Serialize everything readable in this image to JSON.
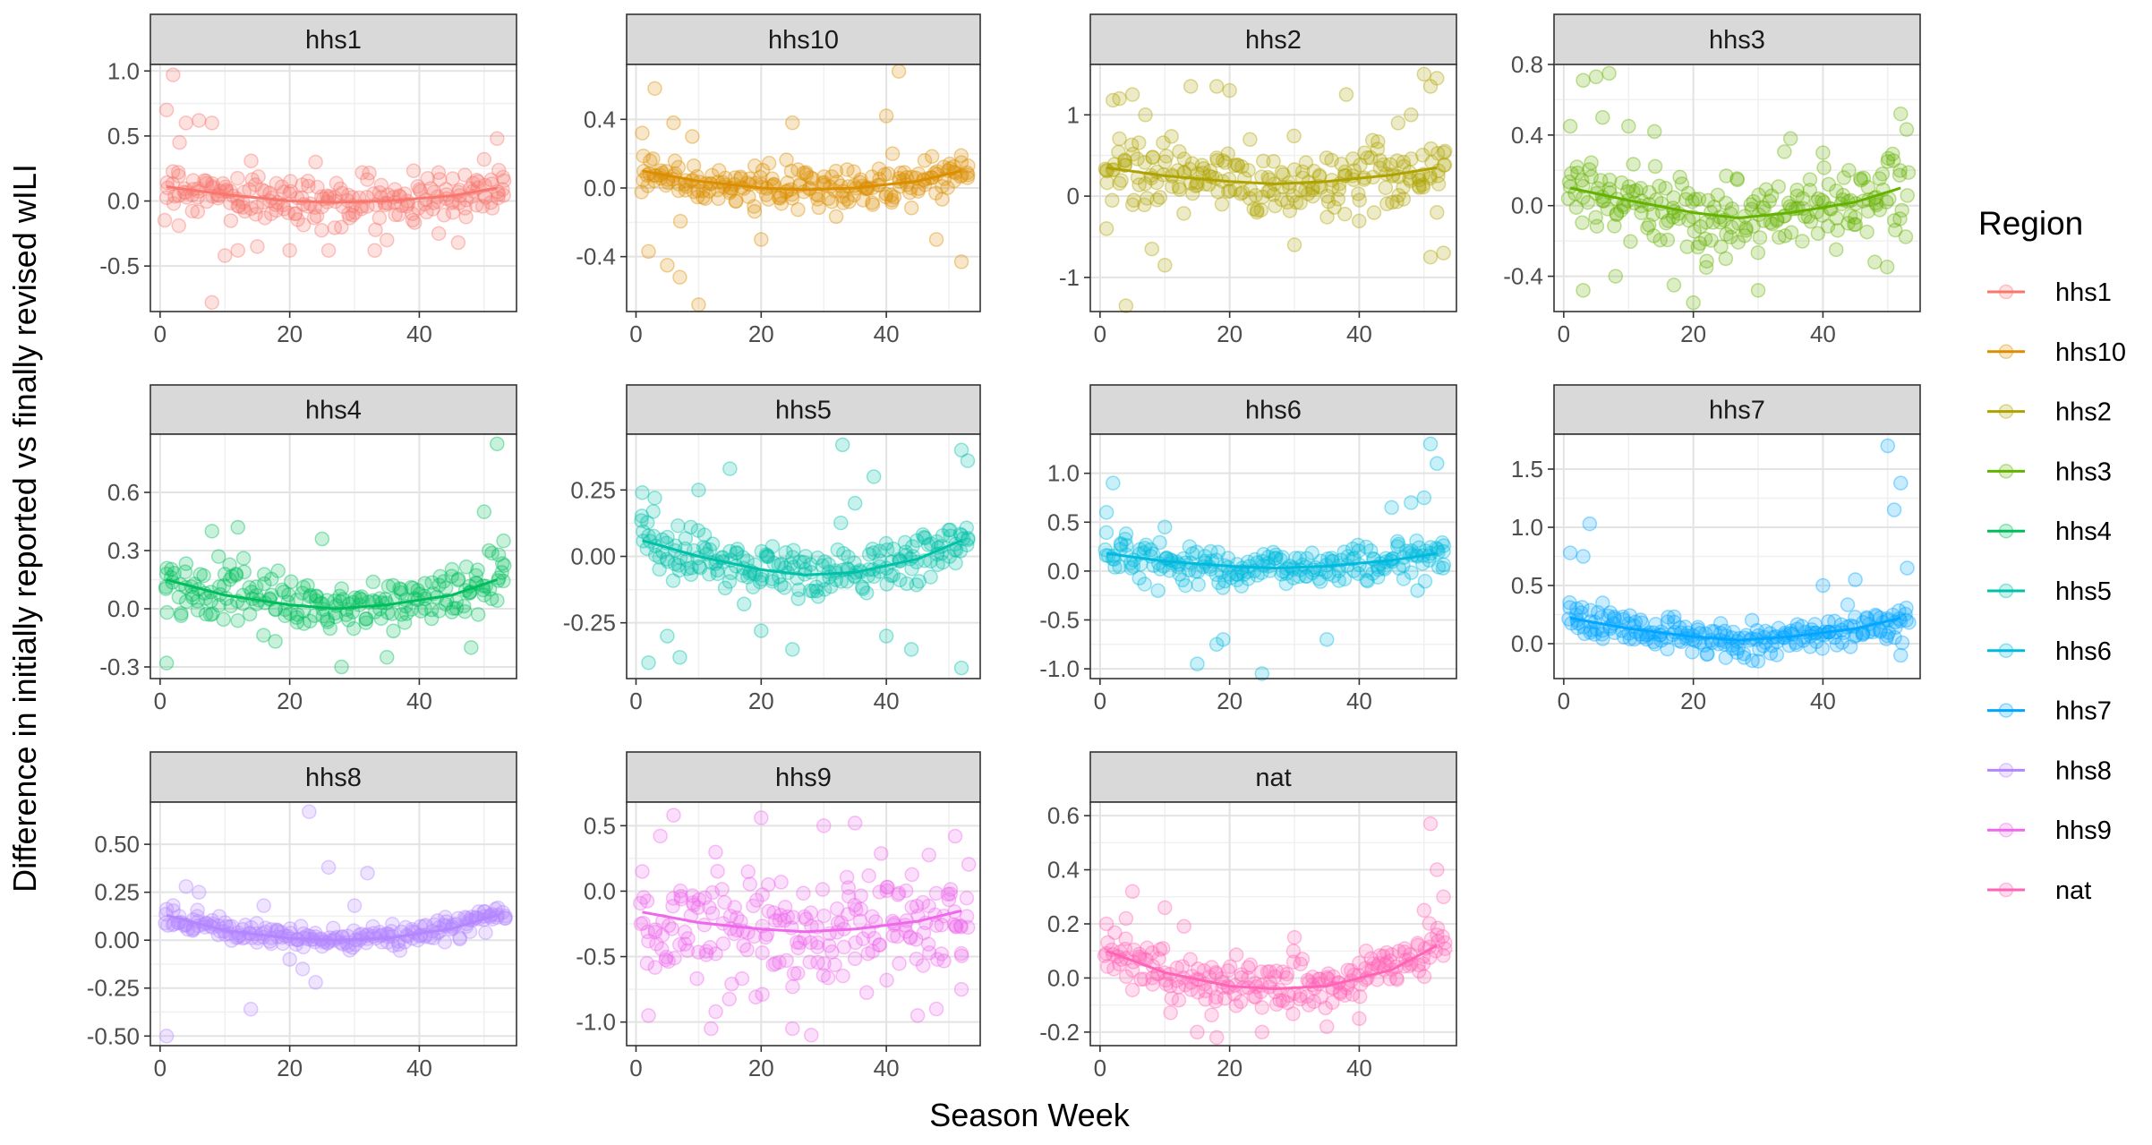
{
  "chart_data": {
    "type": "scatter",
    "facet_titles": [
      "hhs1",
      "hhs10",
      "hhs2",
      "hhs3",
      "hhs4",
      "hhs5",
      "hhs6",
      "hhs7",
      "hhs8",
      "hhs9",
      "nat"
    ],
    "xlabel": "Season Week",
    "ylabel": "Difference in initially reported vs finally revised wILI",
    "legend": {
      "title": "Region",
      "position": "right",
      "entries": [
        "hhs1",
        "hhs10",
        "hhs2",
        "hhs3",
        "hhs4",
        "hhs5",
        "hhs6",
        "hhs7",
        "hhs8",
        "hhs9",
        "nat"
      ]
    },
    "x_ticks": [
      0,
      20,
      40
    ],
    "xlim": [
      -1.5,
      55
    ],
    "grid": true,
    "colors": {
      "hhs1": "#F8766D",
      "hhs10": "#DB8E00",
      "hhs2": "#AEA200",
      "hhs3": "#64B200",
      "hhs4": "#00BD5C",
      "hhs5": "#00C1A7",
      "hhs6": "#00BADE",
      "hhs7": "#00A6FF",
      "hhs8": "#B385FF",
      "hhs9": "#EF67EB",
      "nat": "#FF63B6"
    },
    "panels": [
      {
        "region": "hhs1",
        "ylim": [
          -0.85,
          1.05
        ],
        "y_ticks": [
          -0.5,
          0.0,
          0.5,
          1.0
        ],
        "y_tick_labels": [
          "-0.5",
          "0.0",
          "0.5",
          "1.0"
        ],
        "spread": 0.17,
        "trend": [
          [
            1,
            0.11
          ],
          [
            10,
            0.05
          ],
          [
            20,
            0.0
          ],
          [
            27,
            -0.01
          ],
          [
            35,
            0.0
          ],
          [
            45,
            0.04
          ],
          [
            52,
            0.1
          ]
        ],
        "outliers": [
          [
            2,
            0.97
          ],
          [
            1,
            0.7
          ],
          [
            3,
            0.45
          ],
          [
            4,
            0.6
          ],
          [
            6,
            0.62
          ],
          [
            8,
            0.6
          ],
          [
            8,
            -0.78
          ],
          [
            10,
            -0.42
          ],
          [
            12,
            -0.38
          ],
          [
            15,
            -0.35
          ],
          [
            20,
            -0.38
          ],
          [
            26,
            -0.38
          ],
          [
            35,
            -0.3
          ],
          [
            43,
            -0.25
          ],
          [
            46,
            -0.32
          ],
          [
            52,
            0.48
          ],
          [
            50,
            0.32
          ],
          [
            24,
            0.3
          ]
        ]
      },
      {
        "region": "hhs10",
        "ylim": [
          -0.72,
          0.72
        ],
        "y_ticks": [
          -0.4,
          0.0,
          0.4
        ],
        "y_tick_labels": [
          "-0.4",
          "0.0",
          "0.4"
        ],
        "spread": 0.11,
        "trend": [
          [
            1,
            0.1
          ],
          [
            10,
            0.04
          ],
          [
            20,
            0.0
          ],
          [
            27,
            -0.01
          ],
          [
            35,
            0.0
          ],
          [
            45,
            0.04
          ],
          [
            52,
            0.1
          ]
        ],
        "outliers": [
          [
            3,
            0.58
          ],
          [
            1,
            0.32
          ],
          [
            2,
            -0.37
          ],
          [
            6,
            0.38
          ],
          [
            5,
            -0.45
          ],
          [
            7,
            -0.52
          ],
          [
            10,
            -0.68
          ],
          [
            9,
            0.3
          ],
          [
            20,
            -0.3
          ],
          [
            25,
            0.38
          ],
          [
            40,
            0.42
          ],
          [
            41,
            0.2
          ],
          [
            42,
            0.68
          ],
          [
            52,
            -0.43
          ],
          [
            48,
            -0.3
          ]
        ]
      },
      {
        "region": "hhs2",
        "ylim": [
          -1.42,
          1.62
        ],
        "y_ticks": [
          -1,
          0,
          1
        ],
        "y_tick_labels": [
          "-1",
          "0",
          "1"
        ],
        "spread": 0.38,
        "trend": [
          [
            1,
            0.35
          ],
          [
            10,
            0.25
          ],
          [
            20,
            0.18
          ],
          [
            27,
            0.15
          ],
          [
            35,
            0.18
          ],
          [
            45,
            0.26
          ],
          [
            52,
            0.35
          ]
        ],
        "outliers": [
          [
            2,
            1.18
          ],
          [
            3,
            1.2
          ],
          [
            5,
            1.25
          ],
          [
            4,
            -1.35
          ],
          [
            7,
            1.0
          ],
          [
            8,
            -0.65
          ],
          [
            10,
            -0.85
          ],
          [
            14,
            1.35
          ],
          [
            18,
            1.35
          ],
          [
            20,
            1.3
          ],
          [
            30,
            -0.6
          ],
          [
            38,
            1.25
          ],
          [
            46,
            0.9
          ],
          [
            48,
            1.0
          ],
          [
            50,
            1.5
          ],
          [
            51,
            1.35
          ],
          [
            52,
            1.45
          ],
          [
            51,
            -0.75
          ],
          [
            53,
            -0.7
          ],
          [
            52,
            -0.2
          ],
          [
            1,
            -0.4
          ]
        ]
      },
      {
        "region": "hhs3",
        "ylim": [
          -0.6,
          0.8
        ],
        "y_ticks": [
          -0.4,
          0.0,
          0.4,
          0.8
        ],
        "y_tick_labels": [
          "-0.4",
          "0.0",
          "0.4",
          "0.8"
        ],
        "spread": 0.2,
        "trend": [
          [
            1,
            0.1
          ],
          [
            10,
            0.03
          ],
          [
            20,
            -0.04
          ],
          [
            27,
            -0.07
          ],
          [
            35,
            -0.04
          ],
          [
            45,
            0.02
          ],
          [
            52,
            0.1
          ]
        ],
        "outliers": [
          [
            3,
            0.71
          ],
          [
            5,
            0.73
          ],
          [
            7,
            0.75
          ],
          [
            1,
            0.45
          ],
          [
            6,
            0.5
          ],
          [
            10,
            0.45
          ],
          [
            14,
            0.42
          ],
          [
            17,
            -0.45
          ],
          [
            20,
            -0.55
          ],
          [
            22,
            -0.35
          ],
          [
            25,
            -0.3
          ],
          [
            30,
            -0.48
          ],
          [
            35,
            0.38
          ],
          [
            40,
            0.3
          ],
          [
            44,
            0.2
          ],
          [
            50,
            0.25
          ],
          [
            52,
            0.52
          ],
          [
            48,
            -0.32
          ],
          [
            3,
            -0.48
          ],
          [
            8,
            -0.4
          ]
        ]
      },
      {
        "region": "hhs4",
        "ylim": [
          -0.36,
          0.9
        ],
        "y_ticks": [
          -0.3,
          0.0,
          0.3,
          0.6
        ],
        "y_tick_labels": [
          "-0.3",
          "0.0",
          "0.3",
          "0.6"
        ],
        "spread": 0.12,
        "trend": [
          [
            1,
            0.15
          ],
          [
            10,
            0.07
          ],
          [
            20,
            0.02
          ],
          [
            27,
            0.0
          ],
          [
            35,
            0.02
          ],
          [
            45,
            0.07
          ],
          [
            52,
            0.15
          ]
        ],
        "outliers": [
          [
            1,
            0.18
          ],
          [
            52,
            0.85
          ],
          [
            50,
            0.5
          ],
          [
            53,
            0.35
          ],
          [
            49,
            0.2
          ],
          [
            8,
            0.4
          ],
          [
            12,
            0.42
          ],
          [
            25,
            0.36
          ],
          [
            28,
            -0.3
          ],
          [
            35,
            -0.25
          ],
          [
            1,
            -0.28
          ],
          [
            48,
            -0.2
          ]
        ]
      },
      {
        "region": "hhs5",
        "ylim": [
          -0.46,
          0.46
        ],
        "y_ticks": [
          -0.25,
          0.0,
          0.25
        ],
        "y_tick_labels": [
          "-0.25",
          "0.00",
          "0.25"
        ],
        "spread": 0.1,
        "trend": [
          [
            1,
            0.06
          ],
          [
            10,
            0.0
          ],
          [
            20,
            -0.05
          ],
          [
            27,
            -0.07
          ],
          [
            35,
            -0.06
          ],
          [
            45,
            -0.01
          ],
          [
            52,
            0.06
          ]
        ],
        "outliers": [
          [
            1,
            0.24
          ],
          [
            3,
            0.22
          ],
          [
            5,
            -0.3
          ],
          [
            7,
            -0.38
          ],
          [
            10,
            0.25
          ],
          [
            15,
            0.33
          ],
          [
            20,
            -0.28
          ],
          [
            25,
            -0.35
          ],
          [
            33,
            0.42
          ],
          [
            38,
            0.3
          ],
          [
            40,
            -0.3
          ],
          [
            44,
            -0.35
          ],
          [
            52,
            0.4
          ],
          [
            53,
            0.36
          ],
          [
            52,
            -0.42
          ],
          [
            35,
            0.2
          ],
          [
            2,
            -0.4
          ]
        ]
      },
      {
        "region": "hhs6",
        "ylim": [
          -1.1,
          1.4
        ],
        "y_ticks": [
          -1.0,
          -0.5,
          0.0,
          0.5,
          1.0
        ],
        "y_tick_labels": [
          "-1.0",
          "-0.5",
          "0.0",
          "0.5",
          "1.0"
        ],
        "spread": 0.18,
        "trend": [
          [
            1,
            0.18
          ],
          [
            10,
            0.1
          ],
          [
            20,
            0.05
          ],
          [
            27,
            0.03
          ],
          [
            35,
            0.05
          ],
          [
            45,
            0.11
          ],
          [
            52,
            0.18
          ]
        ],
        "outliers": [
          [
            2,
            0.9
          ],
          [
            1,
            0.6
          ],
          [
            10,
            0.45
          ],
          [
            15,
            -0.95
          ],
          [
            18,
            -0.75
          ],
          [
            19,
            -0.7
          ],
          [
            25,
            -1.05
          ],
          [
            35,
            -0.7
          ],
          [
            45,
            0.65
          ],
          [
            48,
            0.7
          ],
          [
            50,
            0.75
          ],
          [
            51,
            1.3
          ],
          [
            52,
            1.1
          ],
          [
            49,
            -0.2
          ],
          [
            53,
            0.2
          ]
        ]
      },
      {
        "region": "hhs7",
        "ylim": [
          -0.3,
          1.8
        ],
        "y_ticks": [
          0.0,
          0.5,
          1.0,
          1.5
        ],
        "y_tick_labels": [
          "0.0",
          "0.5",
          "1.0",
          "1.5"
        ],
        "spread": 0.12,
        "trend": [
          [
            1,
            0.22
          ],
          [
            10,
            0.13
          ],
          [
            20,
            0.06
          ],
          [
            27,
            0.03
          ],
          [
            35,
            0.06
          ],
          [
            45,
            0.13
          ],
          [
            52,
            0.22
          ]
        ],
        "outliers": [
          [
            1,
            0.78
          ],
          [
            3,
            0.75
          ],
          [
            4,
            1.03
          ],
          [
            2,
            0.3
          ],
          [
            6,
            0.35
          ],
          [
            50,
            1.7
          ],
          [
            52,
            1.38
          ],
          [
            51,
            1.15
          ],
          [
            53,
            0.65
          ],
          [
            50,
            0.2
          ],
          [
            52,
            -0.1
          ],
          [
            30,
            -0.15
          ],
          [
            25,
            -0.12
          ],
          [
            40,
            0.5
          ],
          [
            45,
            0.55
          ]
        ]
      },
      {
        "region": "hhs8",
        "ylim": [
          -0.55,
          0.72
        ],
        "y_ticks": [
          -0.5,
          -0.25,
          0.0,
          0.25,
          0.5
        ],
        "y_tick_labels": [
          "-0.50",
          "-0.25",
          "0.00",
          "0.25",
          "0.50"
        ],
        "spread": 0.05,
        "trend": [
          [
            1,
            0.13
          ],
          [
            10,
            0.05
          ],
          [
            20,
            0.01
          ],
          [
            27,
            0.0
          ],
          [
            35,
            0.01
          ],
          [
            45,
            0.06
          ],
          [
            52,
            0.13
          ]
        ],
        "outliers": [
          [
            1,
            -0.5
          ],
          [
            23,
            0.67
          ],
          [
            26,
            0.38
          ],
          [
            32,
            0.35
          ],
          [
            22,
            -0.15
          ],
          [
            24,
            -0.22
          ],
          [
            14,
            -0.36
          ],
          [
            4,
            0.28
          ],
          [
            6,
            0.25
          ],
          [
            16,
            0.18
          ],
          [
            20,
            -0.1
          ],
          [
            30,
            0.18
          ],
          [
            50,
            0.15
          ],
          [
            44,
            0.12
          ]
        ]
      },
      {
        "region": "hhs9",
        "ylim": [
          -1.18,
          0.68
        ],
        "y_ticks": [
          -1.0,
          -0.5,
          0.0,
          0.5
        ],
        "y_tick_labels": [
          "-1.0",
          "-0.5",
          "0.0",
          "0.5"
        ],
        "spread": 0.42,
        "trend": [
          [
            1,
            -0.16
          ],
          [
            10,
            -0.24
          ],
          [
            20,
            -0.29
          ],
          [
            27,
            -0.31
          ],
          [
            35,
            -0.29
          ],
          [
            45,
            -0.23
          ],
          [
            52,
            -0.15
          ]
        ],
        "outliers": [
          [
            6,
            0.58
          ],
          [
            20,
            0.56
          ],
          [
            30,
            0.5
          ],
          [
            35,
            0.52
          ],
          [
            51,
            0.42
          ],
          [
            2,
            -0.95
          ],
          [
            12,
            -1.05
          ],
          [
            25,
            -1.05
          ],
          [
            28,
            -1.1
          ],
          [
            45,
            -0.95
          ],
          [
            48,
            -0.9
          ],
          [
            1,
            0.15
          ],
          [
            52,
            -0.75
          ]
        ]
      },
      {
        "region": "nat",
        "ylim": [
          -0.25,
          0.65
        ],
        "y_ticks": [
          -0.2,
          0.0,
          0.2,
          0.4,
          0.6
        ],
        "y_tick_labels": [
          "-0.2",
          "0.0",
          "0.2",
          "0.4",
          "0.6"
        ],
        "spread": 0.09,
        "trend": [
          [
            1,
            0.1
          ],
          [
            10,
            0.02
          ],
          [
            20,
            -0.03
          ],
          [
            27,
            -0.04
          ],
          [
            35,
            -0.03
          ],
          [
            45,
            0.03
          ],
          [
            52,
            0.12
          ]
        ],
        "outliers": [
          [
            51,
            0.57
          ],
          [
            52,
            0.4
          ],
          [
            53,
            0.3
          ],
          [
            50,
            0.25
          ],
          [
            1,
            0.2
          ],
          [
            4,
            0.22
          ],
          [
            5,
            0.32
          ],
          [
            10,
            0.26
          ],
          [
            15,
            -0.2
          ],
          [
            18,
            -0.22
          ],
          [
            25,
            -0.2
          ],
          [
            35,
            -0.18
          ],
          [
            40,
            -0.15
          ],
          [
            30,
            0.15
          ],
          [
            44,
            0.05
          ]
        ]
      }
    ]
  }
}
